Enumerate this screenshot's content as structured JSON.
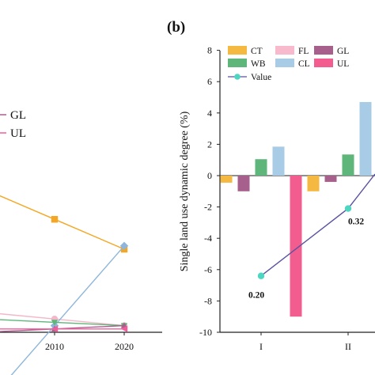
{
  "chart_data": [
    {
      "panel": "a",
      "type": "line",
      "x": [
        2010,
        2020
      ],
      "xticks": [
        "2010",
        "2020"
      ],
      "legend_visible": [
        "GL",
        "UL"
      ],
      "series": [
        {
          "color": "#f4b6c9",
          "marker": "circle",
          "points": [
            [
              2010,
              0.96
            ],
            [
              2020,
              0.98
            ]
          ]
        },
        {
          "color": "#f5a623",
          "marker": "square",
          "points": [
            [
              2010,
              0.66
            ],
            [
              2020,
              0.75
            ]
          ]
        },
        {
          "color": "#8db6da",
          "marker": "diamond",
          "points": [
            [
              2010,
              0.98
            ],
            [
              2020,
              0.74
            ]
          ]
        },
        {
          "color": "#5eb67a",
          "marker": "triangle-down",
          "points": [
            [
              2010,
              0.97
            ],
            [
              2020,
              0.98
            ]
          ]
        },
        {
          "color": "#a7608c",
          "marker": "triangle-up",
          "points": [
            [
              2010,
              0.99
            ],
            [
              2020,
              0.98
            ]
          ]
        },
        {
          "color": "#f25c9d",
          "marker": "triangle-left",
          "points": [
            [
              2010,
              0.99
            ],
            [
              2020,
              0.99
            ]
          ]
        }
      ]
    },
    {
      "panel": "b",
      "type": "bar",
      "panel_label": "(b)",
      "ylabel": "Single land use dynamic degree (%)",
      "ylim": [
        -10,
        8
      ],
      "yticks": [
        8,
        6,
        4,
        2,
        0,
        -2,
        -4,
        -6,
        -8,
        -10
      ],
      "categories": [
        "I",
        "II"
      ],
      "legend": [
        {
          "name": "CT",
          "color": "#f5b840"
        },
        {
          "name": "FL",
          "color": "#f9b9cc"
        },
        {
          "name": "GL",
          "color": "#a7608c"
        },
        {
          "name": "WB",
          "color": "#5eb67a"
        },
        {
          "name": "CL",
          "color": "#a8cbe6"
        },
        {
          "name": "UL",
          "color": "#f25c8e"
        },
        {
          "name": "Value",
          "color": "#5a52a0",
          "marker_color": "#4dd6c0"
        }
      ],
      "series": [
        {
          "name": "CT",
          "color": "#f5b840",
          "values": [
            -0.45,
            -1.0
          ]
        },
        {
          "name": "GL",
          "color": "#a7608c",
          "values": [
            -1.0,
            -0.4
          ]
        },
        {
          "name": "WB",
          "color": "#5eb67a",
          "values": [
            1.05,
            1.35
          ]
        },
        {
          "name": "CL",
          "color": "#a8cbe6",
          "values": [
            1.85,
            4.7
          ]
        },
        {
          "name": "UL",
          "color": "#f25c8e",
          "values": [
            -9.0,
            0
          ]
        }
      ],
      "value_line": {
        "name": "Value",
        "points": [
          {
            "category": "I",
            "y": -6.4,
            "label": "0.20"
          },
          {
            "category": "II",
            "y": -2.1,
            "label": "0.32"
          }
        ],
        "end_y": 0.1
      }
    }
  ]
}
